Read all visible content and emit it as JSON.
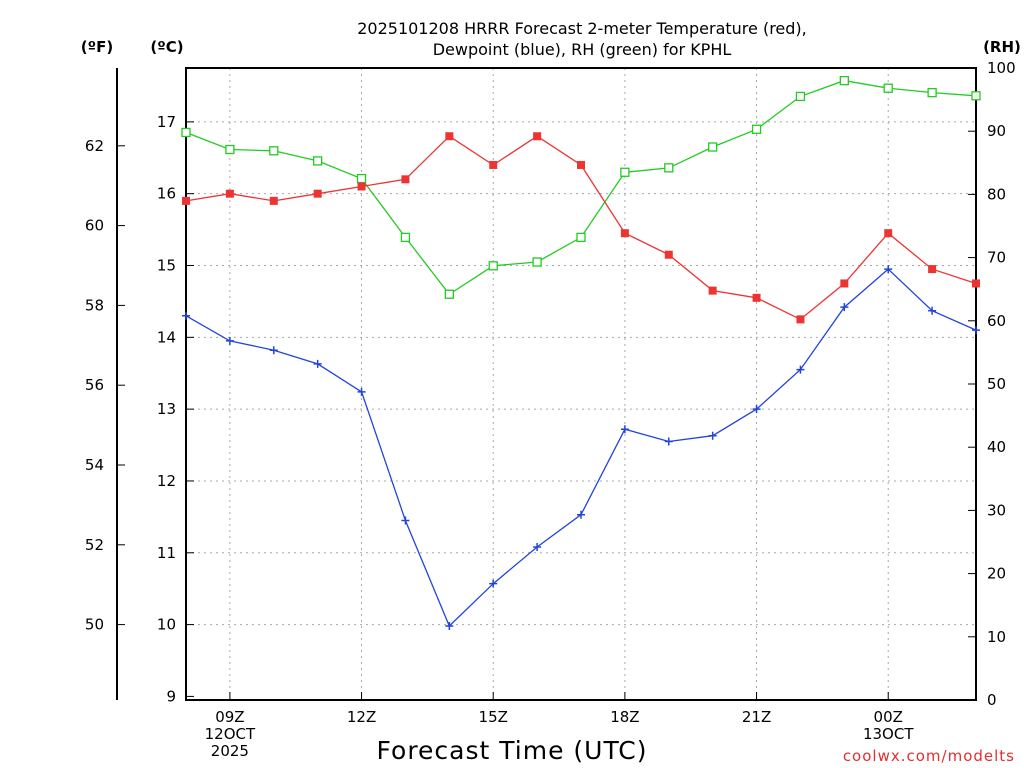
{
  "chart_data": {
    "type": "line",
    "title_line1": "2025101208 HRRR Forecast 2-meter Temperature (red),",
    "title_line2": "Dewpoint (blue), RH (green) for KPHL",
    "xlabel": "Forecast Time (UTC)",
    "credit": "coolwx.com/modelts",
    "units": {
      "fahrenheit": "(ºF)",
      "celsius": "(ºC)",
      "rh": "(RH)"
    },
    "x_hours": [
      8,
      9,
      10,
      11,
      12,
      13,
      14,
      15,
      16,
      17,
      18,
      19,
      20,
      21,
      22,
      23,
      24,
      25,
      26
    ],
    "xlim": [
      8,
      26
    ],
    "x_ticks": [
      {
        "hour": 9,
        "lines": [
          "09Z",
          "12OCT",
          "2025"
        ]
      },
      {
        "hour": 12,
        "lines": [
          "12Z"
        ]
      },
      {
        "hour": 15,
        "lines": [
          "15Z"
        ]
      },
      {
        "hour": 18,
        "lines": [
          "18Z"
        ]
      },
      {
        "hour": 21,
        "lines": [
          "21Z"
        ]
      },
      {
        "hour": 24,
        "lines": [
          "00Z",
          "13OCT"
        ]
      }
    ],
    "x_grid_hours": [
      9,
      12,
      15,
      18,
      21,
      24
    ],
    "celsius_axis": {
      "min": 8.95,
      "max": 17.75,
      "ticks": [
        "9",
        "10",
        "11",
        "12",
        "13",
        "14",
        "15",
        "16",
        "17"
      ]
    },
    "fahrenheit_axis": {
      "ticks": [
        "50",
        "52",
        "54",
        "56",
        "58",
        "60",
        "62"
      ]
    },
    "rh_axis": {
      "min": 0,
      "max": 100,
      "ticks": [
        "0",
        "10",
        "20",
        "30",
        "40",
        "50",
        "60",
        "70",
        "80",
        "90",
        "100"
      ]
    },
    "series": [
      {
        "name": "Temperature",
        "unit": "C",
        "color": "#ee3333",
        "marker": "filled-square",
        "values": [
          15.9,
          16.0,
          15.9,
          16.0,
          16.1,
          16.2,
          16.8,
          16.4,
          16.8,
          16.4,
          15.45,
          15.15,
          14.65,
          14.55,
          14.25,
          14.75,
          15.45,
          14.95,
          14.75
        ]
      },
      {
        "name": "Dewpoint",
        "unit": "C",
        "color": "#2244dd",
        "marker": "plus",
        "values": [
          14.3,
          13.95,
          13.82,
          13.63,
          13.24,
          11.45,
          9.98,
          10.57,
          11.08,
          11.53,
          12.72,
          12.55,
          12.63,
          13.0,
          13.55,
          14.42,
          14.95,
          14.37,
          14.1
        ]
      },
      {
        "name": "RH",
        "unit": "%",
        "color": "#22cc22",
        "marker": "open-square",
        "values": [
          89.8,
          87.1,
          86.9,
          85.3,
          82.5,
          73.2,
          64.2,
          68.7,
          69.3,
          73.2,
          83.5,
          84.2,
          87.5,
          90.3,
          95.5,
          98.0,
          96.8,
          96.1,
          95.6
        ]
      }
    ]
  }
}
